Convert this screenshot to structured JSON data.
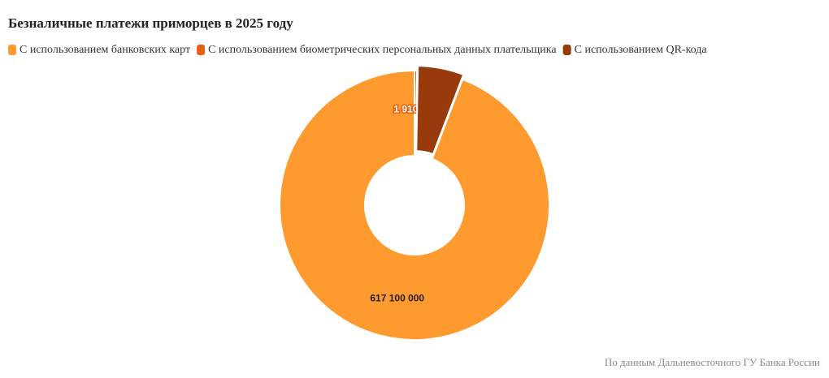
{
  "chart_data": {
    "type": "donut",
    "title": "Безналичные платежи приморцев в 2025 году",
    "categories": [
      "С использованием банковских карт",
      "С использованием биометрических персональных данных плательщика",
      "С использованием QR-кода"
    ],
    "values": [
      617100000,
      1910000,
      36000000
    ],
    "value_labels": [
      "617 100 000",
      "1 910 000",
      null
    ],
    "colors": [
      "#ff9a2e",
      "#e8600f",
      "#983a0b"
    ],
    "source": "По данным Дальневосточного ГУ Банка России"
  }
}
